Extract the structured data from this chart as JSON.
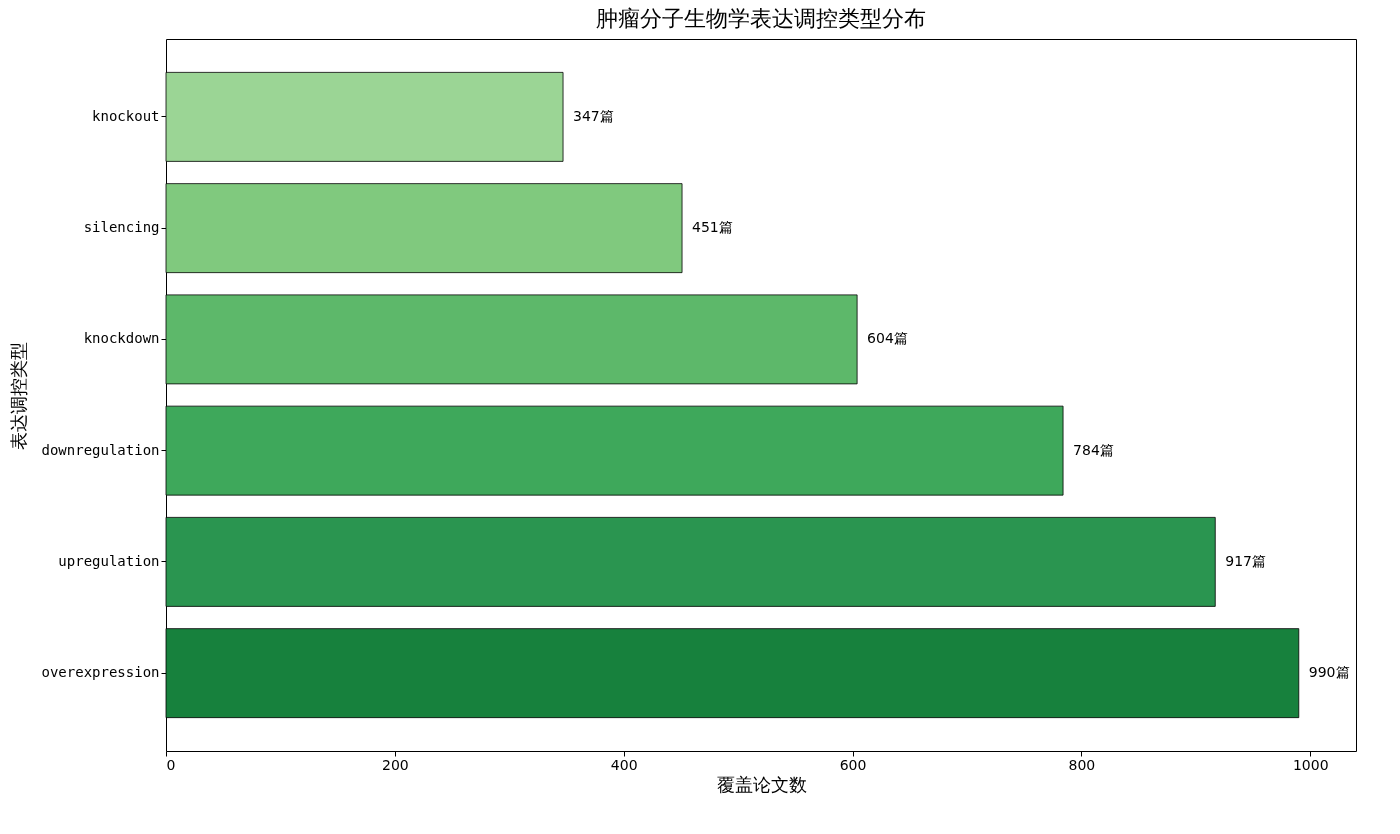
{
  "chart_data": {
    "type": "bar",
    "orientation": "horizontal",
    "title": "肿瘤分子生物学表达调控类型分布",
    "xlabel": "覆盖论文数",
    "ylabel": "表达调控类型",
    "categories": [
      "knockout",
      "silencing",
      "knockdown",
      "downregulation",
      "upregulation",
      "overexpression"
    ],
    "values": [
      347,
      451,
      604,
      784,
      917,
      990
    ],
    "colors": [
      "#9bd595",
      "#80c97e",
      "#5db86a",
      "#3ea85b",
      "#2a9550",
      "#17813d"
    ],
    "value_labels": [
      "347篇",
      "451篇",
      "604篇",
      "784篇",
      "917篇",
      "990篇"
    ],
    "xlim": [
      0,
      1040
    ],
    "xticks": [
      0,
      200,
      400,
      600,
      800,
      1000
    ],
    "grid": false
  }
}
